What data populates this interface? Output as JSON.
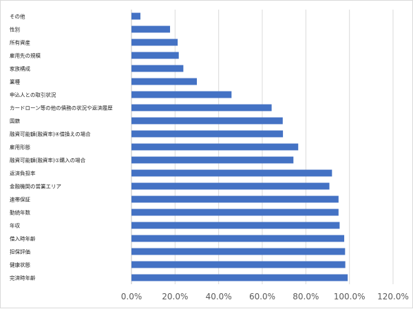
{
  "chart_data": {
    "type": "bar",
    "orientation": "horizontal",
    "title": "",
    "xlabel": "",
    "ylabel": "",
    "categories": [
      "その他",
      "性別",
      "所有資産",
      "雇用先の規模",
      "家族構成",
      "業種",
      "申込人との取引状況",
      "カードローン等の他の債務の状況や返済履歴",
      "国籍",
      "融資可能額(融資率)④借換えの場合",
      "雇用形態",
      "融資可能額(融資率)①購入の場合",
      "返済負担率",
      "金融機関の営業エリア",
      "連帯保証",
      "勤続年数",
      "年収",
      "借入時年齢",
      "担保評価",
      "健康状態",
      "完済時年齢"
    ],
    "values": [
      0.041,
      0.177,
      0.212,
      0.217,
      0.238,
      0.3,
      0.459,
      0.643,
      0.694,
      0.695,
      0.765,
      0.743,
      0.92,
      0.908,
      0.95,
      0.95,
      0.955,
      0.976,
      0.98,
      0.981,
      0.992
    ],
    "xlim": [
      0,
      1.2
    ],
    "xticks": [
      0,
      0.2,
      0.4,
      0.6,
      0.8,
      1.0,
      1.2
    ],
    "xtick_labels": [
      "0.0%",
      "20.0%",
      "40.0%",
      "60.0%",
      "80.0%",
      "100.0%",
      "120.0%"
    ],
    "grid": true,
    "legend": "none",
    "bar_color": "#4472c4"
  }
}
